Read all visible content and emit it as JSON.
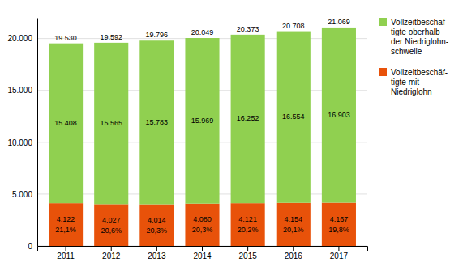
{
  "chart_data": {
    "type": "bar",
    "stacked": true,
    "categories": [
      "2011",
      "2012",
      "2013",
      "2014",
      "2015",
      "2016",
      "2017"
    ],
    "series": [
      {
        "name": "Vollzeitbeschäf-\ntigte mit\nNiedriglohn",
        "color": "#e8520a",
        "values": [
          4122,
          4027,
          4014,
          4080,
          4121,
          4154,
          4167
        ],
        "value_labels": [
          "4.122",
          "4.027",
          "4.014",
          "4.080",
          "4.121",
          "4.154",
          "4.167"
        ],
        "shares": [
          21.1,
          20.6,
          20.3,
          20.3,
          20.2,
          20.1,
          19.8
        ],
        "share_labels": [
          "21,1%",
          "20,6%",
          "20,3%",
          "20,3%",
          "20,2%",
          "20,1%",
          "19,8%"
        ]
      },
      {
        "name": "Vollzeitbeschäf-\ntigte oberhalb\nder Niedriglohn-\nschwelle",
        "color": "#90d050",
        "values": [
          15408,
          15565,
          15783,
          15969,
          16252,
          16554,
          16903
        ],
        "value_labels": [
          "15.408",
          "15.565",
          "15.783",
          "15.969",
          "16.252",
          "16.554",
          "16.903"
        ]
      }
    ],
    "totals": [
      19530,
      19592,
      19796,
      20049,
      20373,
      20708,
      21069
    ],
    "total_labels": [
      "19.530",
      "19.592",
      "19.796",
      "20.049",
      "20.373",
      "20.708",
      "21.069"
    ],
    "ylim": [
      0,
      22000
    ],
    "yticks": [
      0,
      {
        "value": 5000,
        "label": "5.000"
      },
      {
        "value": 10000,
        "label": "10.000"
      },
      {
        "value": 15000,
        "label": "15.000"
      },
      {
        "value": 20000,
        "label": "20.000"
      }
    ],
    "grid": true,
    "legend": "right",
    "data_labels": true
  }
}
